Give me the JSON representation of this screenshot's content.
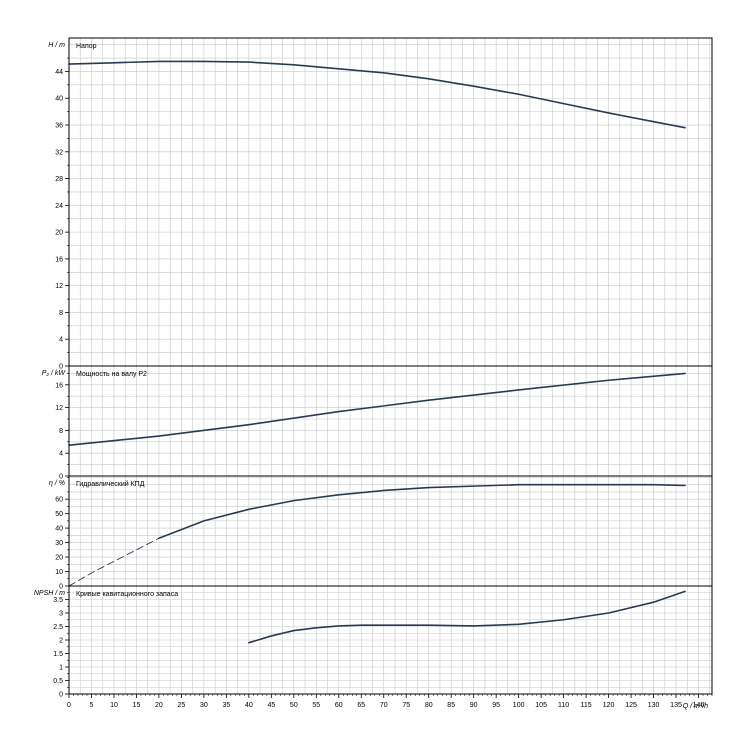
{
  "colors": {
    "curve": "#2a3a55",
    "grid": "#c8c8c8",
    "frame": "#000000",
    "text": "#000000"
  },
  "x_axis": {
    "label": "Q / m³/h",
    "range": [
      0,
      143
    ],
    "ticks": [
      0,
      5,
      10,
      15,
      20,
      25,
      30,
      35,
      40,
      45,
      50,
      55,
      60,
      65,
      70,
      75,
      80,
      85,
      90,
      95,
      100,
      105,
      110,
      115,
      120,
      125,
      130,
      135,
      140
    ]
  },
  "chart_data": [
    {
      "type": "line",
      "title": "Напор",
      "ylabel": "H / m",
      "ylim": [
        0,
        49
      ],
      "yticks": [
        0,
        4,
        8,
        12,
        16,
        20,
        24,
        28,
        32,
        36,
        40,
        44
      ],
      "grid": true,
      "series": [
        {
          "style": "solid",
          "x": [
            0,
            10,
            20,
            30,
            40,
            50,
            60,
            70,
            80,
            90,
            100,
            110,
            120,
            130,
            137
          ],
          "y": [
            45.1,
            45.3,
            45.5,
            45.5,
            45.4,
            45.0,
            44.4,
            43.8,
            42.9,
            41.8,
            40.6,
            39.2,
            37.8,
            36.5,
            35.6
          ]
        }
      ]
    },
    {
      "type": "line",
      "title": "Мощность на валу P2",
      "ylabel": "P₂ / kW",
      "ylim": [
        0,
        19.3
      ],
      "yticks": [
        0,
        4,
        8,
        12,
        16
      ],
      "grid": true,
      "series": [
        {
          "style": "solid",
          "x": [
            0,
            20,
            40,
            60,
            80,
            100,
            120,
            137
          ],
          "y": [
            5.4,
            7.0,
            9.0,
            11.3,
            13.3,
            15.1,
            16.8,
            18.0
          ]
        }
      ]
    },
    {
      "type": "line",
      "title": "Гидравлический КПД",
      "ylabel": "η / %",
      "ylim": [
        0,
        76
      ],
      "yticks": [
        0,
        10,
        20,
        30,
        40,
        50,
        60
      ],
      "grid": true,
      "series": [
        {
          "style": "dashed",
          "x": [
            0,
            5,
            10,
            15,
            20
          ],
          "y": [
            0,
            9,
            17,
            25,
            33
          ]
        },
        {
          "style": "solid",
          "x": [
            20,
            30,
            40,
            50,
            60,
            70,
            80,
            90,
            100,
            110,
            120,
            130,
            137
          ],
          "y": [
            33,
            45,
            53,
            59,
            63,
            66,
            68,
            69,
            70,
            70,
            70,
            70,
            69.5
          ]
        }
      ]
    },
    {
      "type": "line",
      "title": "Кривые кавитационного запаса",
      "ylabel": "NPSH / m",
      "ylim": [
        0,
        4.0
      ],
      "yticks": [
        0,
        0.5,
        1,
        1.5,
        2,
        2.5,
        3,
        3.5
      ],
      "grid": true,
      "series": [
        {
          "style": "solid",
          "x": [
            40,
            45,
            50,
            55,
            60,
            65,
            70,
            80,
            90,
            100,
            110,
            120,
            130,
            137
          ],
          "y": [
            1.9,
            2.15,
            2.35,
            2.45,
            2.52,
            2.55,
            2.55,
            2.55,
            2.52,
            2.58,
            2.75,
            3.0,
            3.4,
            3.8
          ]
        }
      ]
    }
  ]
}
